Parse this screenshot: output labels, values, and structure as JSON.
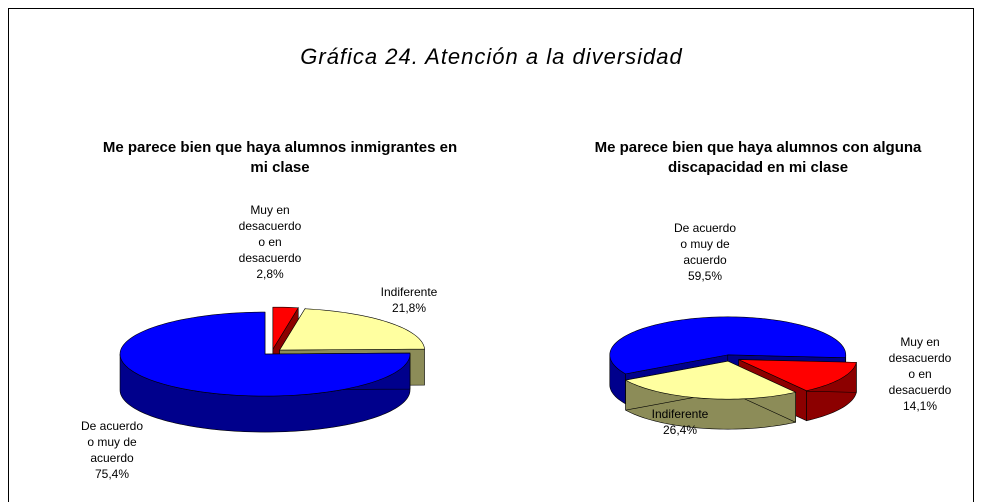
{
  "title": "Gráfica 24. Atención a la diversidad",
  "chart_data": [
    {
      "type": "pie",
      "title": "Me parece bien que haya alumnos inmigrantes en mi clase",
      "categories": [
        "Muy en desacuerdo o en desacuerdo",
        "Indiferente",
        "De acuerdo o muy de acuerdo"
      ],
      "values": [
        2.8,
        21.8,
        75.4
      ],
      "value_labels": [
        "2,8%",
        "21,8%",
        "75,4%"
      ],
      "colors": [
        "#ff0000",
        "#ffffa0",
        "#0000ff"
      ]
    },
    {
      "type": "pie",
      "title": "Me parece bien que haya alumnos con alguna discapacidad en mi clase",
      "categories": [
        "De acuerdo o muy de acuerdo",
        "Muy en desacuerdo o en desacuerdo",
        "Indiferente"
      ],
      "values": [
        59.5,
        14.1,
        26.4
      ],
      "value_labels": [
        "59,5%",
        "14,1%",
        "26,4%"
      ],
      "colors": [
        "#0000ff",
        "#ff0000",
        "#ffffa0"
      ]
    }
  ]
}
